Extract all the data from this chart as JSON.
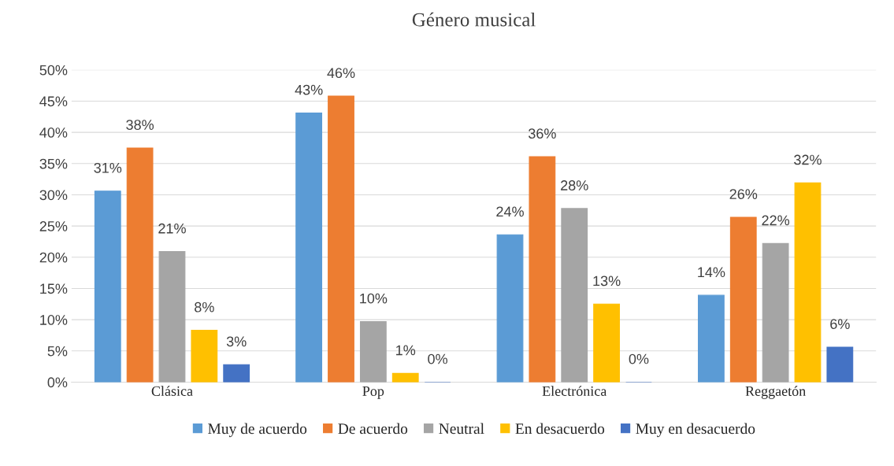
{
  "chart_data": {
    "type": "bar",
    "title": "Género musical",
    "categories": [
      "Clásica",
      "Pop",
      "Electrónica",
      "Reggaetón"
    ],
    "series": [
      {
        "name": "Muy de acuerdo",
        "color": "#5b9bd5",
        "values": [
          30.6,
          43.1,
          23.6,
          13.9
        ],
        "value_labels": [
          "31%",
          "43%",
          "24%",
          "14%"
        ]
      },
      {
        "name": "De acuerdo",
        "color": "#ed7d31",
        "values": [
          37.5,
          45.8,
          36.1,
          26.4
        ],
        "value_labels": [
          "38%",
          "46%",
          "36%",
          "26%"
        ]
      },
      {
        "name": "Neutral",
        "color": "#a5a5a5",
        "values": [
          20.9,
          9.7,
          27.8,
          22.2
        ],
        "value_labels": [
          "21%",
          "10%",
          "28%",
          "22%"
        ]
      },
      {
        "name": "En desacuerdo",
        "color": "#ffc000",
        "values": [
          8.3,
          1.4,
          12.5,
          31.9
        ],
        "value_labels": [
          "8%",
          "1%",
          "13%",
          "32%"
        ]
      },
      {
        "name": "Muy en desacuerdo",
        "color": "#4472c4",
        "values": [
          2.8,
          0,
          0,
          5.6
        ],
        "value_labels": [
          "3%",
          "0%",
          "0%",
          "6%"
        ]
      }
    ],
    "ylim": [
      0,
      50
    ],
    "yticks": [
      {
        "value": 0,
        "label": "0%"
      },
      {
        "value": 5,
        "label": "5%"
      },
      {
        "value": 10,
        "label": "10%"
      },
      {
        "value": 15,
        "label": "15%"
      },
      {
        "value": 20,
        "label": "20%"
      },
      {
        "value": 25,
        "label": "25%"
      },
      {
        "value": 30,
        "label": "30%"
      },
      {
        "value": 35,
        "label": "35%"
      },
      {
        "value": 40,
        "label": "40%"
      },
      {
        "value": 45,
        "label": "45%"
      },
      {
        "value": 50,
        "label": "50%"
      }
    ],
    "grid": "y",
    "legend": "bottom"
  }
}
